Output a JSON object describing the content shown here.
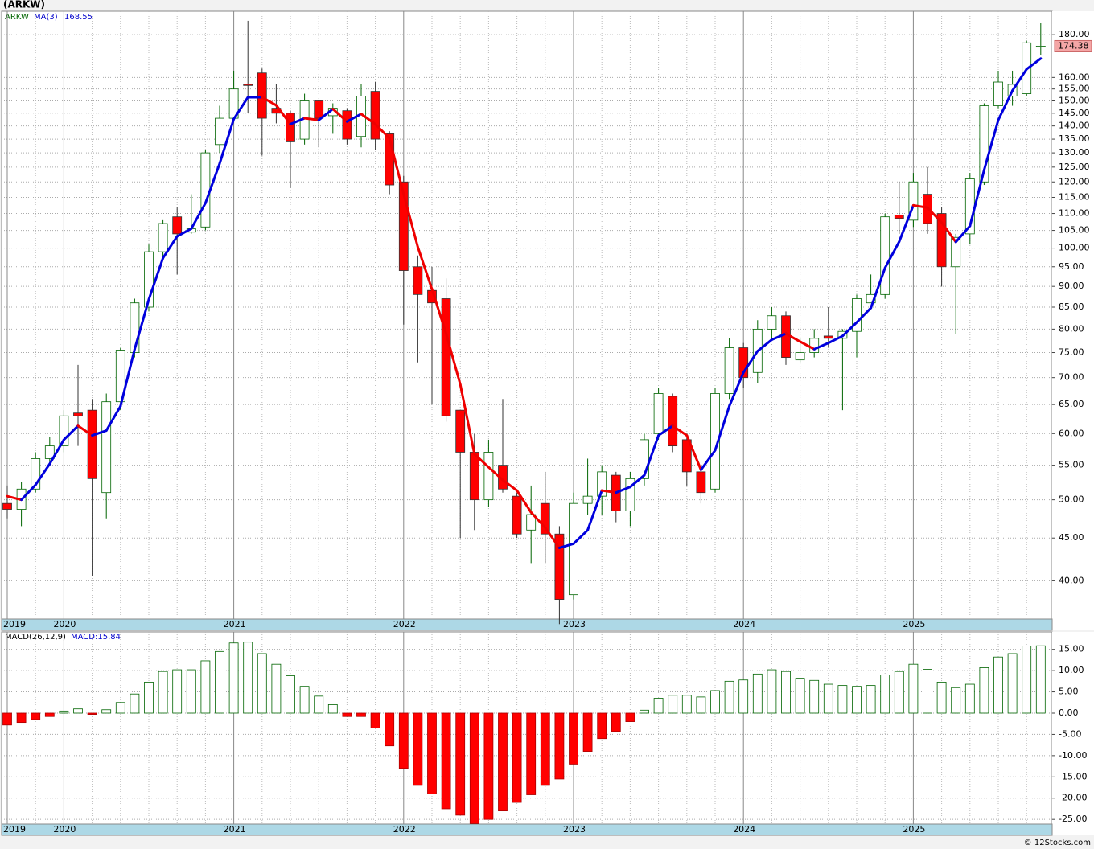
{
  "chart_data": [
    {
      "type": "candlestick",
      "title": "(ARKW)",
      "name": "ARKW",
      "categories": [
        "2019",
        null,
        null,
        null,
        "2020",
        null,
        null,
        null,
        null,
        null,
        null,
        null,
        null,
        null,
        null,
        null,
        "2021",
        null,
        null,
        null,
        null,
        null,
        null,
        null,
        null,
        null,
        null,
        null,
        "2022",
        null,
        null,
        null,
        null,
        null,
        null,
        null,
        null,
        null,
        null,
        null,
        "2023",
        null,
        null,
        null,
        null,
        null,
        null,
        null,
        null,
        null,
        null,
        null,
        "2024",
        null,
        null,
        null,
        null,
        null,
        null,
        null,
        null,
        null,
        null,
        null,
        "2025",
        null,
        null,
        null,
        null,
        null,
        null,
        null,
        null,
        null
      ],
      "open": [
        49.5,
        48.7,
        51.5,
        56,
        58,
        63.5,
        64,
        51,
        65.5,
        75,
        85,
        99,
        109,
        104.5,
        106,
        133,
        143,
        157,
        162,
        147,
        145,
        135,
        150,
        144,
        146,
        136,
        154,
        137,
        120,
        95,
        89,
        87,
        64,
        57,
        50,
        55,
        50.5,
        46,
        49.5,
        45.5,
        38.5,
        49.5,
        50.5,
        53.5,
        48.5,
        53,
        60,
        66.5,
        59,
        54,
        51.5,
        67,
        76,
        71,
        80,
        83,
        73.5,
        75,
        78.5,
        78,
        79.5,
        86,
        88,
        109.5,
        108,
        116,
        110,
        95,
        104,
        120,
        148,
        152,
        153,
        174
      ],
      "high": [
        52,
        52.5,
        57,
        59.5,
        64,
        72.5,
        66,
        67,
        76,
        87,
        101,
        108,
        112,
        116,
        131,
        148,
        163,
        187,
        164,
        157,
        146,
        153,
        150,
        149,
        147,
        157,
        158,
        138,
        122,
        98,
        95,
        92,
        64,
        60,
        59,
        66,
        51,
        52,
        54,
        46.5,
        51,
        56,
        55,
        54,
        54,
        60,
        68,
        67,
        60,
        55,
        68,
        78,
        77,
        82,
        85,
        84,
        78,
        80,
        85,
        80,
        88,
        93,
        110,
        120,
        123,
        125,
        112,
        104,
        123,
        149,
        163,
        163,
        177,
        186
      ],
      "low": [
        47.5,
        46.5,
        51,
        55,
        57,
        58,
        40.5,
        47.5,
        64,
        74,
        84,
        97,
        93,
        104,
        105,
        130,
        142,
        145,
        129,
        141,
        118,
        133,
        132,
        137,
        133,
        132,
        131,
        116,
        81,
        73,
        65,
        62,
        45,
        46,
        49,
        51,
        45,
        42,
        42,
        35.5,
        38,
        48,
        48,
        47,
        46.5,
        52,
        59,
        57,
        52,
        49.5,
        51,
        66,
        68,
        69,
        78,
        72.5,
        73,
        74,
        76,
        64,
        74,
        86,
        87,
        104,
        106,
        104,
        90,
        79,
        101,
        119,
        147,
        148,
        152,
        170
      ],
      "close": [
        48.7,
        51.5,
        56,
        58,
        63,
        63,
        53,
        65.5,
        75.5,
        86,
        99,
        107,
        104,
        105.5,
        130,
        143,
        155,
        156.5,
        143,
        145,
        134,
        150,
        143,
        147,
        135,
        152,
        135,
        119,
        94,
        88,
        86,
        63,
        57,
        50,
        57,
        51.5,
        45.5,
        48,
        45.5,
        38,
        49.5,
        50.5,
        54,
        48.5,
        53,
        59,
        67,
        58,
        54,
        51,
        67,
        76,
        70,
        80,
        83,
        74,
        75,
        78,
        78,
        79.5,
        87,
        88,
        109,
        108.5,
        120,
        107,
        95,
        103,
        121,
        148,
        158,
        157,
        176,
        174.38
      ],
      "ma": {
        "name": "MA(3)",
        "rising_color": "#0000dd",
        "falling_color": "#ee0000",
        "values": [
          50.5,
          50,
          52.1,
          55.2,
          59,
          61.3,
          59.7,
          60.5,
          64.7,
          75.7,
          86.8,
          97.3,
          103.3,
          105.5,
          113.2,
          126.2,
          142.7,
          151.5,
          151.5,
          148.2,
          140.7,
          143,
          142.3,
          146.7,
          141.7,
          144.7,
          140.7,
          135.3,
          116,
          100.3,
          89.3,
          79,
          68.7,
          56.7,
          54.7,
          52.8,
          51.3,
          48.3,
          46.3,
          43.8,
          44.3,
          46,
          51.3,
          51,
          51.8,
          53.5,
          59.7,
          61.3,
          59.7,
          54.3,
          57.3,
          64.7,
          71,
          75.3,
          77.7,
          79,
          77.3,
          75.7,
          77,
          78.5,
          81.5,
          84.8,
          94.7,
          101.8,
          112.5,
          111.8,
          107.3,
          101.7,
          106.3,
          124,
          142.3,
          154.3,
          163.7,
          168.55
        ]
      },
      "up_color": "#006400",
      "down_color": "#ff0000",
      "ylim": [
        36,
        192
      ],
      "log_scale": true,
      "grid": true,
      "yticks": [
        {
          "value": 40,
          "label": "40.00"
        },
        {
          "value": 45,
          "label": "45.00"
        },
        {
          "value": 50,
          "label": "50.00"
        },
        {
          "value": 55,
          "label": "55.00"
        },
        {
          "value": 60,
          "label": "60.00"
        },
        {
          "value": 65,
          "label": "65.00"
        },
        {
          "value": 70,
          "label": "70.00"
        },
        {
          "value": 75,
          "label": "75.00"
        },
        {
          "value": 80,
          "label": "80.00"
        },
        {
          "value": 85,
          "label": "85.00"
        },
        {
          "value": 90,
          "label": "90.00"
        },
        {
          "value": 95,
          "label": "95.00"
        },
        {
          "value": 100,
          "label": "100.00"
        },
        {
          "value": 105,
          "label": "105.00"
        },
        {
          "value": 110,
          "label": "110.00"
        },
        {
          "value": 115,
          "label": "115.00"
        },
        {
          "value": 120,
          "label": "120.00"
        },
        {
          "value": 125,
          "label": "125.00"
        },
        {
          "value": 130,
          "label": "130.00"
        },
        {
          "value": 135,
          "label": "135.00"
        },
        {
          "value": 140,
          "label": "140.00"
        },
        {
          "value": 145,
          "label": "145.00"
        },
        {
          "value": 150,
          "label": "150.00"
        },
        {
          "value": 155,
          "label": "155.00"
        },
        {
          "value": 160,
          "label": "160.00"
        },
        {
          "value": 180,
          "label": "180.00"
        }
      ]
    },
    {
      "type": "bar",
      "name": "MACD(26,12,9)",
      "value_name": "MACD:",
      "values": [
        -2.8,
        -2.2,
        -1.5,
        -0.8,
        0.5,
        1,
        -0.3,
        0.8,
        2.5,
        4.5,
        7.3,
        9.8,
        10.2,
        10.2,
        12.3,
        14.5,
        16.5,
        16.7,
        14,
        11.5,
        8.8,
        6.3,
        4,
        2,
        -0.8,
        -0.8,
        -3.5,
        -7.7,
        -13,
        -17,
        -19,
        -22.5,
        -24,
        -26,
        -25,
        -23,
        -21,
        -19.2,
        -17,
        -15.5,
        -12,
        -9,
        -6,
        -4.3,
        -2,
        0.7,
        3.5,
        4.2,
        4.2,
        3.8,
        5.3,
        7.5,
        7.8,
        9.2,
        10.2,
        9.8,
        8.2,
        7.7,
        6.8,
        6.5,
        6.3,
        6.5,
        9,
        9.8,
        11.5,
        10.3,
        7.3,
        6,
        6.8,
        10.7,
        13.2,
        14,
        15.8,
        15.84
      ],
      "up_color": "#006400",
      "down_color": "#ff0000",
      "ylim": [
        -26.1,
        19.1
      ],
      "grid": true,
      "yticks": [
        {
          "value": -25,
          "label": "-25.00"
        },
        {
          "value": -20,
          "label": "-20.00"
        },
        {
          "value": -15,
          "label": "-15.00"
        },
        {
          "value": -10,
          "label": "-10.00"
        },
        {
          "value": -5,
          "label": "-5.00"
        },
        {
          "value": 0,
          "label": "0.00"
        },
        {
          "value": 5,
          "label": "5.00"
        },
        {
          "value": 10,
          "label": "10.00"
        },
        {
          "value": 15,
          "label": "15.00"
        }
      ]
    }
  ],
  "footer": "© 12Stocks.com"
}
